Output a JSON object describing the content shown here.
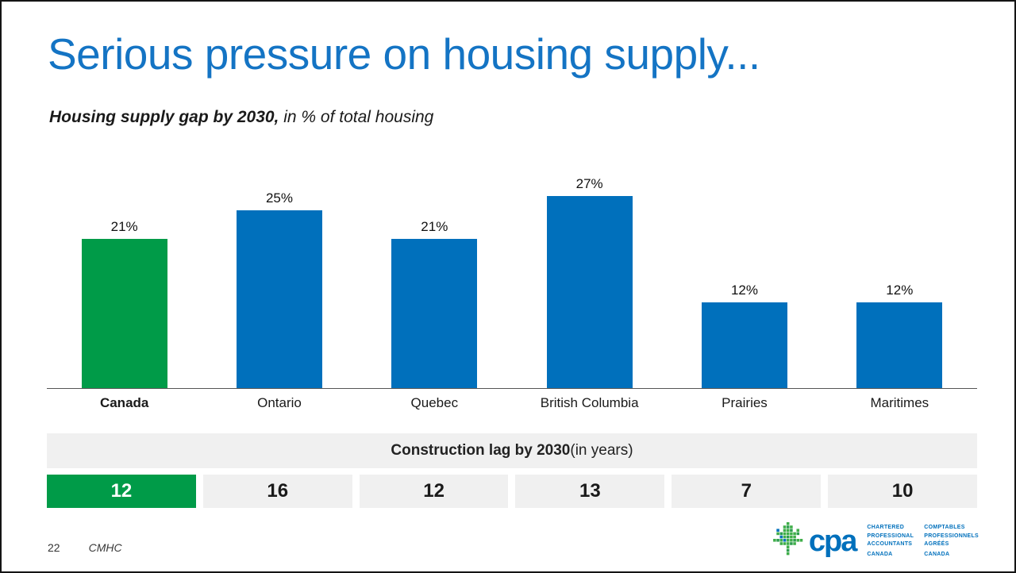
{
  "slide": {
    "title": "Serious pressure on housing supply...",
    "subtitle_bold": "Housing supply gap by 2030,",
    "subtitle_rest": " in % of total housing",
    "page_number": "22",
    "source": "CMHC"
  },
  "colors": {
    "title_blue": "#1474C4",
    "bar_blue": "#0070BC",
    "bar_green": "#009B48",
    "cell_gray": "#F0F0F0",
    "logo_blue": "#0070BC",
    "leaf_green": "#3FAE49"
  },
  "chart_data": {
    "type": "bar",
    "title": "Housing supply gap by 2030, in % of total housing",
    "categories": [
      "Canada",
      "Ontario",
      "Quebec",
      "British Columbia",
      "Prairies",
      "Maritimes"
    ],
    "values": [
      21,
      25,
      21,
      27,
      12,
      12
    ],
    "value_labels": [
      "21%",
      "25%",
      "21%",
      "27%",
      "12%",
      "12%"
    ],
    "highlight_index": 0,
    "xlabel": "",
    "ylabel": "% of total housing",
    "ylim": [
      0,
      30
    ],
    "grid": false,
    "legend": false
  },
  "lag_table": {
    "header_bold": "Construction lag by 2030",
    "header_rest": " (in years)",
    "values": [
      "12",
      "16",
      "12",
      "13",
      "7",
      "10"
    ],
    "highlight_index": 0
  },
  "logo": {
    "wordmark": "cpa",
    "en_lines": [
      "CHARTERED",
      "PROFESSIONAL",
      "ACCOUNTANTS",
      "CANADA"
    ],
    "fr_lines": [
      "COMPTABLES",
      "PROFESSIONNELS",
      "AGRÉÉS",
      "CANADA"
    ]
  }
}
